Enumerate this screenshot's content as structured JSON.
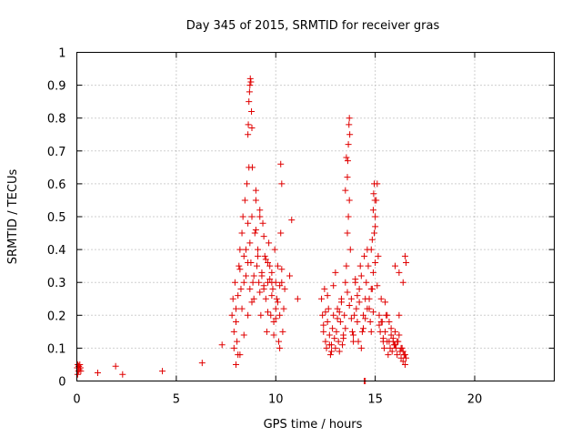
{
  "chart_data": {
    "type": "scatter",
    "title": "Day 345 of 2015, SRMTID for receiver gras",
    "xlabel": "GPS time / hours",
    "ylabel": "SRMTID / TECUs",
    "xlim": [
      0,
      24
    ],
    "ylim": [
      0,
      1
    ],
    "xticks": [
      0,
      5,
      10,
      15,
      20
    ],
    "xtick_labels": [
      "0",
      "5",
      "10",
      "15",
      "20"
    ],
    "yticks": [
      0,
      0.1,
      0.2,
      0.3,
      0.4,
      0.5,
      0.6,
      0.7,
      0.8,
      0.9,
      1
    ],
    "ytick_labels": [
      "0",
      "0.1",
      "0.2",
      "0.3",
      "0.4",
      "0.5",
      "0.6",
      "0.7",
      "0.8",
      "0.9",
      "1"
    ],
    "grid": true,
    "marker": "plus",
    "color": "#e00000",
    "series": [
      {
        "x": [
          0.02,
          0.05,
          0.08,
          0.1,
          0.12,
          0.15,
          0.18,
          0.2,
          0.04,
          0.09,
          1.05,
          1.95,
          2.3,
          4.3,
          6.3,
          7.3,
          7.8,
          7.85,
          7.9,
          7.95,
          8.0,
          8.05,
          8.1,
          8.15,
          8.2,
          8.25,
          8.3,
          8.35,
          8.4,
          8.45,
          8.5,
          8.55,
          8.6,
          8.65,
          8.7,
          8.75,
          8.8,
          8.85,
          8.9,
          8.95,
          9.0,
          9.05,
          9.1,
          9.15,
          9.2,
          9.25,
          9.3,
          9.35,
          9.4,
          9.45,
          9.5,
          9.55,
          9.6,
          9.65,
          9.7,
          9.75,
          9.8,
          9.85,
          9.9,
          9.95,
          10.0,
          10.05,
          10.1,
          10.15,
          10.2,
          10.25,
          10.3,
          10.35,
          10.4,
          10.45,
          8.6,
          8.62,
          8.65,
          8.68,
          8.7,
          8.72,
          8.75,
          8.78,
          8.8,
          8.82,
          7.9,
          8.0,
          8.1,
          8.2,
          8.3,
          8.4,
          8.5,
          8.6,
          8.7,
          8.8,
          8.9,
          9.0,
          9.1,
          9.2,
          9.3,
          9.4,
          9.5,
          9.6,
          9.7,
          9.8,
          9.9,
          10.0,
          10.1,
          10.2,
          10.3,
          8.0,
          8.2,
          8.4,
          8.6,
          8.8,
          9.0,
          9.2,
          9.4,
          9.6,
          9.8,
          10.0,
          10.2,
          10.25,
          10.3,
          10.8,
          10.7,
          11.1,
          12.3,
          12.35,
          12.4,
          12.45,
          12.5,
          12.55,
          12.6,
          12.65,
          12.7,
          12.75,
          12.8,
          12.85,
          12.9,
          12.95,
          13.0,
          13.05,
          13.1,
          13.15,
          13.2,
          13.25,
          13.3,
          13.35,
          13.4,
          13.45,
          13.5,
          13.55,
          13.6,
          13.65,
          13.7,
          13.75,
          13.8,
          13.85,
          13.9,
          13.95,
          14.0,
          14.05,
          14.1,
          14.15,
          14.2,
          14.25,
          14.3,
          14.35,
          14.4,
          14.45,
          14.5,
          14.55,
          14.6,
          14.65,
          14.7,
          14.75,
          14.8,
          14.85,
          14.9,
          14.95,
          15.0,
          15.05,
          15.1,
          15.15,
          15.2,
          15.25,
          15.3,
          15.35,
          15.4,
          15.45,
          15.5,
          15.55,
          15.6,
          15.65,
          15.7,
          15.75,
          15.8,
          15.85,
          15.9,
          15.95,
          16.0,
          16.05,
          16.1,
          16.15,
          16.2,
          16.25,
          16.3,
          16.35,
          16.4,
          16.45,
          16.5,
          16.55,
          13.6,
          13.62,
          13.65,
          13.68,
          13.7,
          13.72,
          13.5,
          13.55,
          14.9,
          14.92,
          14.95,
          14.98,
          15.0,
          14.85,
          14.8,
          12.4,
          12.6,
          12.8,
          13.0,
          13.2,
          13.4,
          13.6,
          13.8,
          14.0,
          14.2,
          14.4,
          14.6,
          14.8,
          15.0,
          15.2,
          15.4,
          15.6,
          15.8,
          16.0,
          16.2,
          16.4,
          12.5,
          12.7,
          12.9,
          13.1,
          13.3,
          13.5,
          13.7,
          13.9,
          14.1,
          14.3,
          14.5,
          14.7,
          14.9,
          15.1,
          15.3,
          15.5,
          15.7,
          15.9,
          16.1,
          16.3,
          16.5,
          14.45,
          14.5,
          16.0,
          16.2,
          16.4,
          16.5,
          16.55
        ],
        "y": [
          0.04,
          0.05,
          0.03,
          0.045,
          0.035,
          0.05,
          0.04,
          0.03,
          0.02,
          0.045,
          0.025,
          0.045,
          0.02,
          0.03,
          0.055,
          0.11,
          0.2,
          0.25,
          0.15,
          0.3,
          0.22,
          0.12,
          0.08,
          0.35,
          0.4,
          0.28,
          0.45,
          0.5,
          0.38,
          0.55,
          0.32,
          0.6,
          0.48,
          0.65,
          0.42,
          0.36,
          0.5,
          0.3,
          0.25,
          0.45,
          0.55,
          0.35,
          0.4,
          0.3,
          0.5,
          0.2,
          0.32,
          0.48,
          0.28,
          0.38,
          0.25,
          0.15,
          0.3,
          0.42,
          0.35,
          0.2,
          0.33,
          0.28,
          0.18,
          0.4,
          0.3,
          0.25,
          0.35,
          0.12,
          0.2,
          0.45,
          0.3,
          0.15,
          0.22,
          0.28,
          0.75,
          0.78,
          0.85,
          0.88,
          0.9,
          0.92,
          0.91,
          0.82,
          0.77,
          0.65,
          0.1,
          0.18,
          0.26,
          0.34,
          0.22,
          0.3,
          0.4,
          0.36,
          0.28,
          0.24,
          0.32,
          0.46,
          0.38,
          0.27,
          0.33,
          0.29,
          0.37,
          0.21,
          0.31,
          0.26,
          0.14,
          0.19,
          0.24,
          0.29,
          0.34,
          0.05,
          0.08,
          0.14,
          0.2,
          0.5,
          0.58,
          0.52,
          0.44,
          0.36,
          0.3,
          0.22,
          0.1,
          0.66,
          0.6,
          0.49,
          0.32,
          0.25,
          0.25,
          0.2,
          0.15,
          0.28,
          0.12,
          0.1,
          0.18,
          0.22,
          0.14,
          0.08,
          0.11,
          0.16,
          0.2,
          0.13,
          0.1,
          0.15,
          0.22,
          0.12,
          0.09,
          0.18,
          0.25,
          0.11,
          0.14,
          0.2,
          0.3,
          0.35,
          0.45,
          0.5,
          0.55,
          0.4,
          0.25,
          0.15,
          0.12,
          0.2,
          0.3,
          0.22,
          0.18,
          0.12,
          0.28,
          0.35,
          0.1,
          0.15,
          0.2,
          0.38,
          0.25,
          0.3,
          0.4,
          0.35,
          0.22,
          0.18,
          0.15,
          0.28,
          0.33,
          0.45,
          0.5,
          0.55,
          0.6,
          0.38,
          0.2,
          0.15,
          0.25,
          0.18,
          0.12,
          0.1,
          0.15,
          0.2,
          0.12,
          0.08,
          0.18,
          0.1,
          0.14,
          0.09,
          0.12,
          0.11,
          0.15,
          0.1,
          0.08,
          0.12,
          0.2,
          0.09,
          0.07,
          0.1,
          0.06,
          0.08,
          0.05,
          0.07,
          0.62,
          0.67,
          0.72,
          0.78,
          0.8,
          0.75,
          0.58,
          0.68,
          0.52,
          0.57,
          0.6,
          0.55,
          0.47,
          0.43,
          0.4,
          0.17,
          0.26,
          0.09,
          0.33,
          0.21,
          0.13,
          0.27,
          0.19,
          0.31,
          0.24,
          0.16,
          0.22,
          0.28,
          0.36,
          0.17,
          0.13,
          0.2,
          0.16,
          0.11,
          0.14,
          0.09,
          0.21,
          0.11,
          0.29,
          0.19,
          0.24,
          0.16,
          0.23,
          0.14,
          0.26,
          0.32,
          0.19,
          0.25,
          0.21,
          0.29,
          0.18,
          0.24,
          0.12,
          0.13,
          0.12,
          0.1,
          0.08,
          0.0,
          0.0,
          0.35,
          0.33,
          0.3,
          0.38,
          0.36
        ]
      }
    ]
  }
}
